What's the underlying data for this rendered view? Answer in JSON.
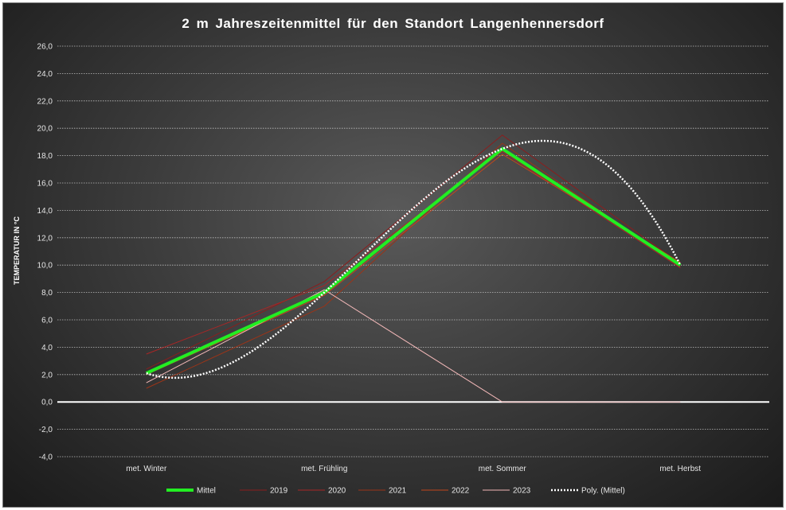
{
  "chart_data": {
    "type": "line",
    "title": "2 m Jahreszeitenmittel  für den Standort  Langenhennersdorf",
    "ylabel": "TEMPERATUR IN °C",
    "xlabel": "",
    "categories": [
      "met. Winter",
      "met. Frühling",
      "met. Sommer",
      "met. Herbst"
    ],
    "ylim": [
      -4,
      26
    ],
    "yticks": [
      "-4,0",
      "-2,0",
      "0,0",
      "2,0",
      "4,0",
      "6,0",
      "8,0",
      "10,0",
      "12,0",
      "14,0",
      "16,0",
      "18,0",
      "20,0",
      "22,0",
      "24,0",
      "26,0"
    ],
    "grid": "horizontal dotted",
    "legend_position": "bottom",
    "series": [
      {
        "name": "Mittel",
        "values": [
          2.1,
          8.0,
          18.5,
          10.0
        ],
        "color": "#22ee22"
      },
      {
        "name": "2019",
        "values": [
          2.4,
          8.8,
          19.5,
          10.1
        ],
        "color": "#8a1e1e"
      },
      {
        "name": "2020",
        "values": [
          3.5,
          8.5,
          18.3,
          9.8
        ],
        "color": "#a82626"
      },
      {
        "name": "2021",
        "values": [
          1.0,
          7.0,
          18.9,
          9.9
        ],
        "color": "#9b3418"
      },
      {
        "name": "2022",
        "values": [
          2.0,
          7.8,
          18.1,
          10.2
        ],
        "color": "#c2461c"
      },
      {
        "name": "2023",
        "values": [
          1.4,
          8.2,
          0.0,
          0.0
        ],
        "color": "#f2b8b8"
      }
    ],
    "trendline": {
      "name": "Poly. (Mittel)",
      "type": "polynomial",
      "base_series": "Mittel",
      "color": "#ffffff"
    }
  }
}
